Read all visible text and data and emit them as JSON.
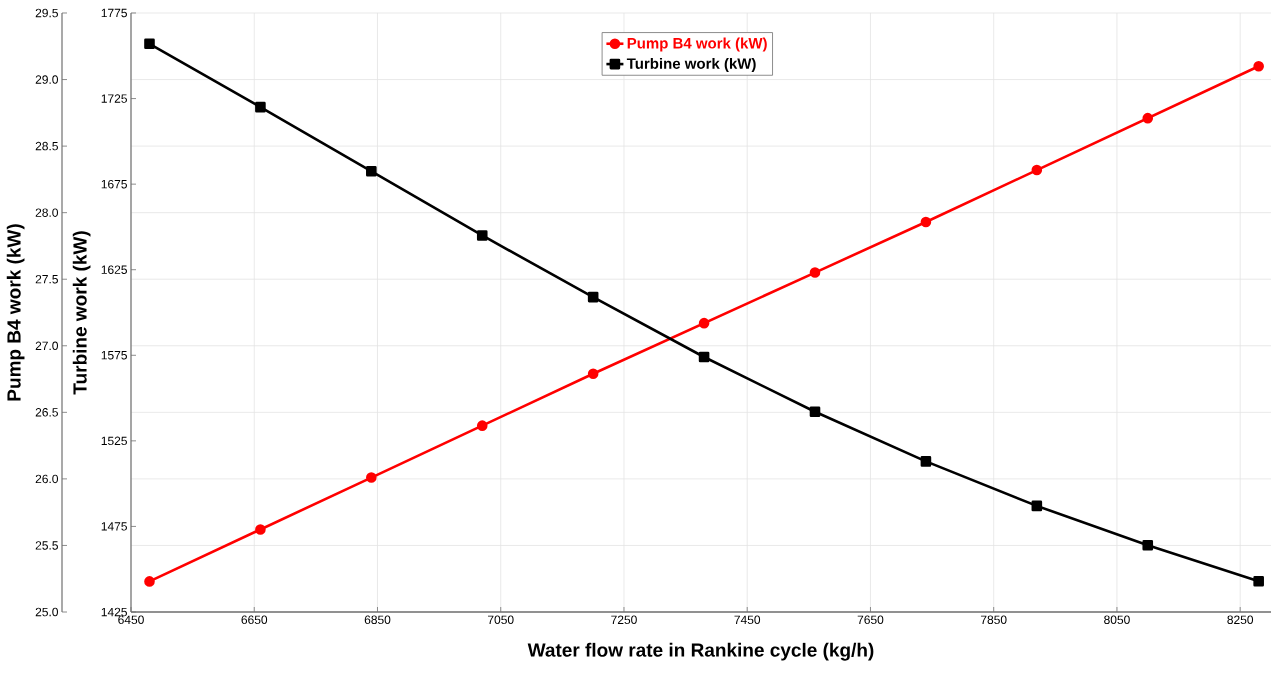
{
  "chart_data": {
    "type": "line",
    "xlabel": "Water flow rate in Rankine cycle (kg/h)",
    "ylabel": "Pump B4 work (kW)",
    "y2label": "Turbine work (kW)",
    "x": [
      6480,
      6660,
      6840,
      7020,
      7200,
      7380,
      7560,
      7740,
      7920,
      8100,
      8280
    ],
    "series": [
      {
        "name": "Pump B4 work (kW)",
        "color": "#ff0000",
        "marker": "circle",
        "axis": "y",
        "values": [
          25.23,
          25.62,
          26.01,
          26.4,
          26.79,
          27.17,
          27.55,
          27.93,
          28.32,
          28.71,
          29.1
        ]
      },
      {
        "name": "Turbine work (kW)",
        "color": "#000000",
        "marker": "square",
        "axis": "y2",
        "values": [
          1757,
          1720,
          1682.5,
          1645,
          1609,
          1574,
          1542,
          1513,
          1487,
          1464,
          1443
        ]
      }
    ],
    "xlim": [
      6450,
      8300
    ],
    "xticks": [
      6450,
      6650,
      6850,
      7050,
      7250,
      7450,
      7650,
      7850,
      8050,
      8250
    ],
    "ylim": [
      25,
      29.5
    ],
    "yticks": [
      {
        "value": 25,
        "label": "25.0"
      },
      25.5,
      {
        "value": 26,
        "label": "26.0"
      },
      26.5,
      {
        "value": 27,
        "label": "27.0"
      },
      27.5,
      {
        "value": 28,
        "label": "28.0"
      },
      28.5,
      {
        "value": 29,
        "label": "29.0"
      },
      29.5
    ],
    "y2lim": [
      1425,
      1775
    ],
    "y2ticks": [
      1425,
      1475,
      1525,
      1575,
      1625,
      1675,
      1725,
      1775
    ],
    "grid": true,
    "legend": "top",
    "line_style": "solid"
  }
}
